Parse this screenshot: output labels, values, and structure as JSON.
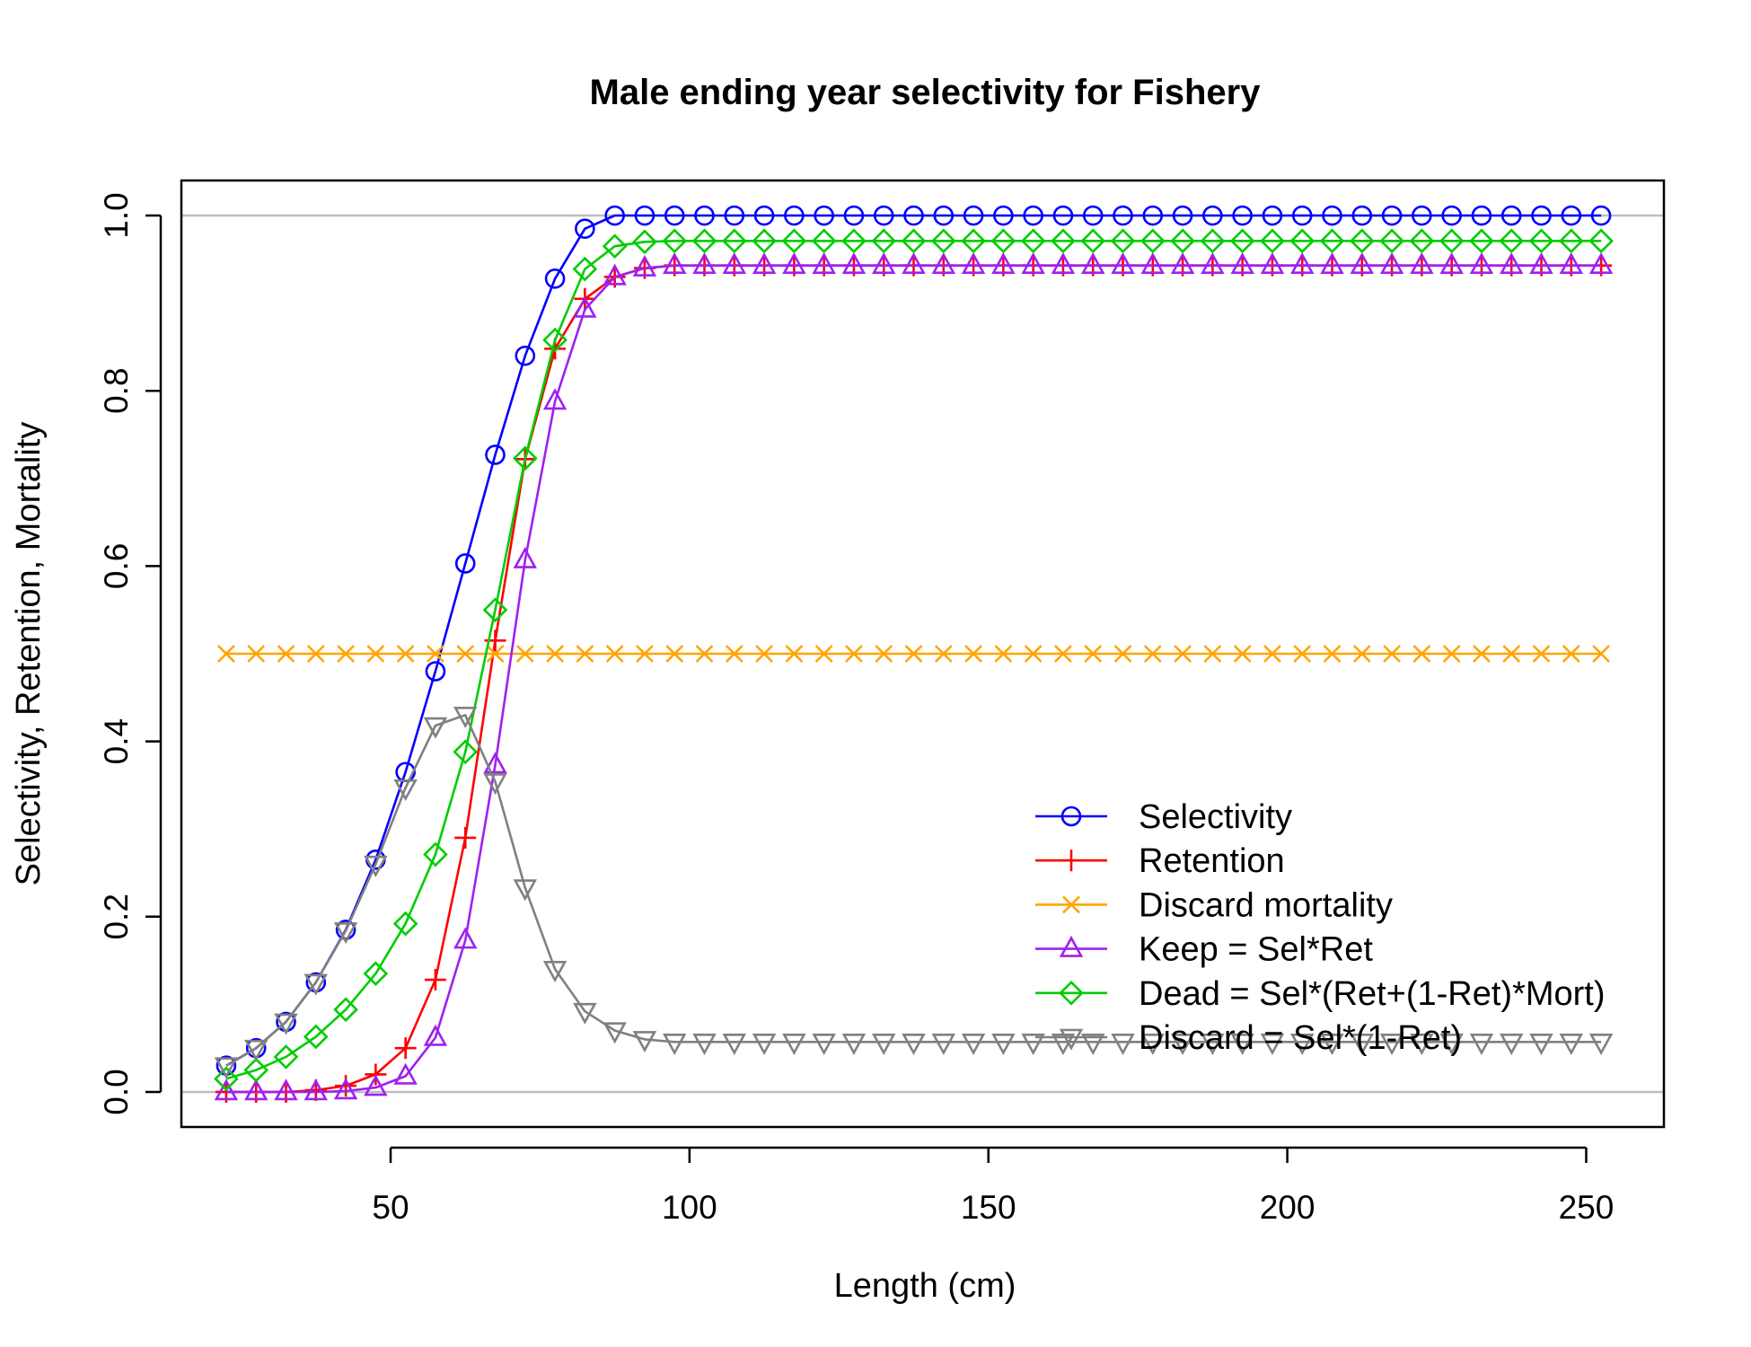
{
  "chart_data": {
    "type": "line",
    "title": "Male ending year selectivity for Fishery",
    "xlabel": "Length (cm)",
    "ylabel": "Selectivity, Retention, Mortality",
    "xlim": [
      15,
      263
    ],
    "ylim": [
      -0.04,
      1.04
    ],
    "xticks": [
      50,
      100,
      150,
      200,
      250
    ],
    "yticks": [
      0.0,
      0.2,
      0.4,
      0.6,
      0.8,
      1.0
    ],
    "ytick_labels": [
      "0.0",
      "0.2",
      "0.4",
      "0.6",
      "0.8",
      "1.0"
    ],
    "hlines": [
      0,
      1
    ],
    "grid": false,
    "legend_position": "bottom-right",
    "x": [
      22.5,
      27.5,
      32.5,
      37.5,
      42.5,
      47.5,
      52.5,
      57.5,
      62.5,
      67.5,
      72.5,
      77.5,
      82.5,
      87.5,
      92.5,
      97.5,
      102.5,
      107.5,
      112.5,
      117.5,
      122.5,
      127.5,
      132.5,
      137.5,
      142.5,
      147.5,
      152.5,
      157.5,
      162.5,
      167.5,
      172.5,
      177.5,
      182.5,
      187.5,
      192.5,
      197.5,
      202.5,
      207.5,
      212.5,
      217.5,
      222.5,
      227.5,
      232.5,
      237.5,
      242.5,
      247.5,
      252.5
    ],
    "series": [
      {
        "name": "Selectivity",
        "color": "#0000ff",
        "marker": "circle",
        "values": [
          0.03,
          0.05,
          0.08,
          0.125,
          0.185,
          0.265,
          0.365,
          0.48,
          0.603,
          0.727,
          0.84,
          0.928,
          0.985,
          1.0,
          1.0,
          1.0,
          1.0,
          1.0,
          1.0,
          1.0,
          1.0,
          1.0,
          1.0,
          1.0,
          1.0,
          1.0,
          1.0,
          1.0,
          1.0,
          1.0,
          1.0,
          1.0,
          1.0,
          1.0,
          1.0,
          1.0,
          1.0,
          1.0,
          1.0,
          1.0,
          1.0,
          1.0,
          1.0,
          1.0,
          1.0,
          1.0,
          1.0
        ]
      },
      {
        "name": "Retention",
        "color": "#ff0000",
        "marker": "plus",
        "values": [
          0.0,
          0.0,
          0.0,
          0.002,
          0.007,
          0.02,
          0.05,
          0.128,
          0.29,
          0.515,
          0.722,
          0.848,
          0.905,
          0.93,
          0.94,
          0.943,
          0.943,
          0.943,
          0.943,
          0.943,
          0.943,
          0.943,
          0.943,
          0.943,
          0.943,
          0.943,
          0.943,
          0.943,
          0.943,
          0.943,
          0.943,
          0.943,
          0.943,
          0.943,
          0.943,
          0.943,
          0.943,
          0.943,
          0.943,
          0.943,
          0.943,
          0.943,
          0.943,
          0.943,
          0.943,
          0.943,
          0.943
        ]
      },
      {
        "name": "Discard mortality",
        "color": "#ffa500",
        "marker": "cross",
        "values": [
          0.5,
          0.5,
          0.5,
          0.5,
          0.5,
          0.5,
          0.5,
          0.5,
          0.5,
          0.5,
          0.5,
          0.5,
          0.5,
          0.5,
          0.5,
          0.5,
          0.5,
          0.5,
          0.5,
          0.5,
          0.5,
          0.5,
          0.5,
          0.5,
          0.5,
          0.5,
          0.5,
          0.5,
          0.5,
          0.5,
          0.5,
          0.5,
          0.5,
          0.5,
          0.5,
          0.5,
          0.5,
          0.5,
          0.5,
          0.5,
          0.5,
          0.5,
          0.5,
          0.5,
          0.5,
          0.5,
          0.5
        ]
      },
      {
        "name": "Keep = Sel*Ret",
        "color": "#a020f0",
        "marker": "triangle-up",
        "values": [
          0.0,
          0.0,
          0.0,
          0.0,
          0.001,
          0.005,
          0.018,
          0.062,
          0.173,
          0.373,
          0.607,
          0.788,
          0.893,
          0.93,
          0.94,
          0.943,
          0.943,
          0.943,
          0.943,
          0.943,
          0.943,
          0.943,
          0.943,
          0.943,
          0.943,
          0.943,
          0.943,
          0.943,
          0.943,
          0.943,
          0.943,
          0.943,
          0.943,
          0.943,
          0.943,
          0.943,
          0.943,
          0.943,
          0.943,
          0.943,
          0.943,
          0.943,
          0.943,
          0.943,
          0.943,
          0.943,
          0.943
        ]
      },
      {
        "name": "Dead = Sel*(Ret+(1-Ret)*Mort)",
        "color": "#00cd00",
        "marker": "diamond",
        "values": [
          0.015,
          0.025,
          0.04,
          0.063,
          0.094,
          0.135,
          0.192,
          0.271,
          0.388,
          0.55,
          0.723,
          0.858,
          0.939,
          0.965,
          0.97,
          0.971,
          0.971,
          0.971,
          0.971,
          0.971,
          0.971,
          0.971,
          0.971,
          0.971,
          0.971,
          0.971,
          0.971,
          0.971,
          0.971,
          0.971,
          0.971,
          0.971,
          0.971,
          0.971,
          0.971,
          0.971,
          0.971,
          0.971,
          0.971,
          0.971,
          0.971,
          0.971,
          0.971,
          0.971,
          0.971,
          0.971,
          0.971
        ]
      },
      {
        "name": "Discard = Sel*(1-Ret)",
        "color": "#808080",
        "marker": "triangle-down",
        "values": [
          0.03,
          0.05,
          0.08,
          0.125,
          0.184,
          0.26,
          0.347,
          0.418,
          0.43,
          0.354,
          0.233,
          0.14,
          0.092,
          0.07,
          0.06,
          0.057,
          0.057,
          0.057,
          0.057,
          0.057,
          0.057,
          0.057,
          0.057,
          0.057,
          0.057,
          0.057,
          0.057,
          0.057,
          0.057,
          0.057,
          0.057,
          0.057,
          0.057,
          0.057,
          0.057,
          0.057,
          0.057,
          0.057,
          0.057,
          0.057,
          0.057,
          0.057,
          0.057,
          0.057,
          0.057,
          0.057,
          0.057
        ]
      }
    ]
  }
}
